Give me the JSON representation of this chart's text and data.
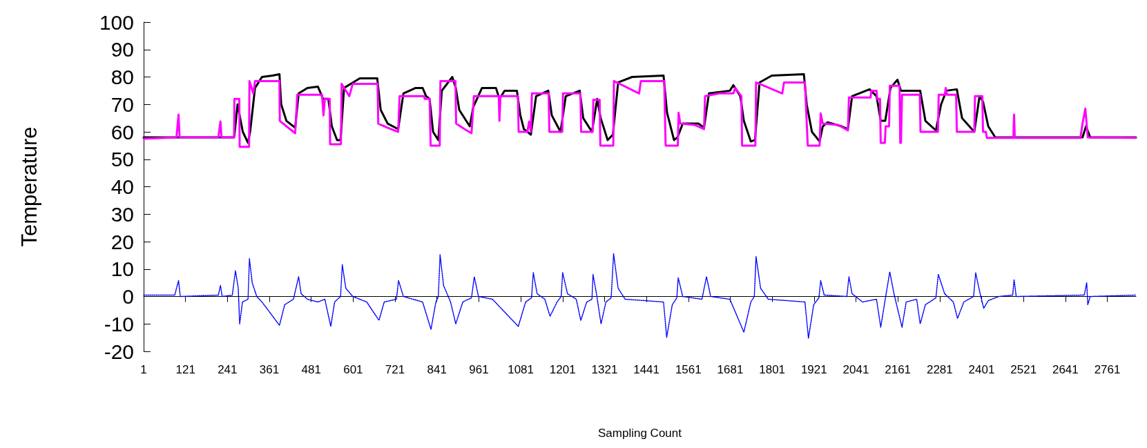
{
  "chart_data": {
    "type": "line",
    "xlabel": "Sampling Count",
    "ylabel": "Temperature",
    "xlim": [
      1,
      2843
    ],
    "xticks": [
      1,
      121,
      241,
      361,
      481,
      601,
      721,
      841,
      961,
      1081,
      1201,
      1321,
      1441,
      1561,
      1681,
      1801,
      1921,
      2041,
      2161,
      2281,
      2401,
      2521,
      2641,
      2761
    ],
    "ylim": [
      -20,
      100
    ],
    "yticks": [
      -20,
      -10,
      0,
      10,
      20,
      30,
      40,
      50,
      60,
      70,
      80,
      90,
      100
    ],
    "series": [
      {
        "color": "#000000",
        "line_style": "solid",
        "x": [
          1,
          260,
          262,
          270,
          285,
          300,
          306,
          320,
          340,
          370,
          390,
          395,
          410,
          435,
          445,
          470,
          500,
          515,
          530,
          540,
          555,
          565,
          575,
          620,
          670,
          680,
          700,
          730,
          745,
          780,
          800,
          810,
          820,
          830,
          845,
          855,
          885,
          895,
          905,
          935,
          945,
          970,
          1010,
          1020,
          1035,
          1070,
          1080,
          1090,
          1110,
          1125,
          1160,
          1170,
          1195,
          1210,
          1250,
          1260,
          1285,
          1300,
          1310,
          1330,
          1345,
          1360,
          1400,
          1490,
          1500,
          1520,
          1530,
          1545,
          1590,
          1606,
          1620,
          1680,
          1690,
          1710,
          1720,
          1740,
          1752,
          1765,
          1800,
          1892,
          1900,
          1915,
          1937,
          1946,
          1960,
          2000,
          2018,
          2030,
          2080,
          2100,
          2112,
          2125,
          2140,
          2160,
          2170,
          2180,
          2225,
          2240,
          2270,
          2285,
          2300,
          2330,
          2345,
          2380,
          2395,
          2405,
          2420,
          2440,
          2690,
          2700,
          2712,
          2843
        ],
        "values": [
          58,
          58,
          60,
          70,
          60,
          56,
          60,
          76,
          80,
          80.5,
          81,
          70,
          64,
          61.5,
          74,
          76,
          76.5,
          72,
          72,
          62,
          57,
          57,
          76,
          79.5,
          79.5,
          68,
          63,
          61,
          74,
          76,
          76,
          73,
          72,
          60,
          57,
          75,
          80,
          76,
          68,
          62,
          69,
          76,
          76,
          72,
          75,
          75,
          66,
          61,
          59,
          73,
          75,
          66,
          60,
          73,
          75,
          65,
          60,
          72,
          65,
          57,
          59,
          78,
          80,
          80.5,
          67,
          57,
          58,
          63,
          63,
          61.5,
          74,
          75,
          77,
          73,
          64,
          56.5,
          57,
          78,
          80.5,
          81,
          70,
          60,
          56.5,
          62,
          63.5,
          62,
          61,
          73,
          75.5,
          73,
          64,
          64,
          76,
          79,
          75,
          75,
          75,
          64,
          60.5,
          70,
          75,
          75.5,
          65,
          60,
          73,
          71,
          62,
          58,
          58,
          62,
          58,
          58
        ]
      },
      {
        "color": "#ff00ff",
        "line_style": "solid",
        "x": [
          1,
          95,
          101,
          104,
          215,
          221,
          224,
          260,
          261,
          275,
          276,
          303,
          304,
          315,
          320,
          390,
          391,
          420,
          435,
          441,
          512,
          516,
          520,
          534,
          535,
          566,
          568,
          590,
          600,
          671,
          673,
          700,
          730,
          734,
          804,
          806,
          820,
          823,
          849,
          851,
          894,
          896,
          920,
          940,
          947,
          1018,
          1020,
          1023,
          1073,
          1075,
          1100,
          1105,
          1110,
          1113,
          1161,
          1163,
          1200,
          1202,
          1252,
          1254,
          1287,
          1289,
          1307,
          1309,
          1346,
          1348,
          1420,
          1425,
          1492,
          1496,
          1531,
          1533,
          1538,
          1580,
          1606,
          1609,
          1650,
          1690,
          1695,
          1713,
          1715,
          1753,
          1755,
          1830,
          1835,
          1895,
          1903,
          1937,
          1940,
          1946,
          1990,
          2018,
          2021,
          2083,
          2085,
          2100,
          2102,
          2110,
          2112,
          2124,
          2126,
          2136,
          2138,
          2166,
          2168,
          2170,
          2173,
          2224,
          2226,
          2276,
          2278,
          2296,
          2298,
          2302,
          2328,
          2330,
          2380,
          2382,
          2403,
          2405,
          2413,
          2416,
          2492,
          2494,
          2496,
          2684,
          2690,
          2698,
          2705,
          2843
        ],
        "values": [
          57.5,
          58,
          66.3,
          58,
          58,
          63.8,
          58,
          58,
          72,
          72,
          54.5,
          54.5,
          78.5,
          74,
          78.5,
          78.5,
          64,
          61,
          59.5,
          73.5,
          73.5,
          66,
          72,
          72,
          55.5,
          55.5,
          77.5,
          73,
          77.5,
          77.5,
          63,
          61.5,
          60,
          73,
          73,
          72,
          72,
          55,
          55,
          78.5,
          78.5,
          63,
          61,
          59.5,
          73,
          73,
          64,
          73,
          73,
          60,
          60,
          63.8,
          60,
          74,
          74,
          60,
          60,
          74,
          74,
          60,
          60,
          71.7,
          71.7,
          55,
          55,
          78.5,
          74,
          78.5,
          78.5,
          55,
          55,
          67,
          63,
          62.5,
          61,
          73,
          74,
          74,
          76,
          73,
          55,
          55,
          78,
          74,
          78,
          78,
          55,
          55,
          66.7,
          63,
          62.5,
          60.5,
          72.5,
          72.5,
          75,
          75,
          72,
          72,
          56,
          56,
          62,
          62,
          76.8,
          76.8,
          56,
          56,
          73.5,
          73.5,
          60,
          60,
          73.5,
          73.5,
          76,
          73.5,
          73.5,
          60,
          60,
          73,
          73,
          60,
          60,
          57.8,
          57.8,
          66.3,
          57.8,
          57.8,
          63,
          68.5,
          58,
          57.8
        ]
      },
      {
        "color": "#0000ff",
        "line_style": "dotted",
        "x": [
          1,
          90,
          101,
          106,
          215,
          221,
          226,
          255,
          264,
          272,
          276,
          284,
          300,
          304,
          312,
          325,
          340,
          390,
          405,
          430,
          445,
          452,
          470,
          500,
          520,
          537,
          548,
          565,
          570,
          580,
          600,
          640,
          675,
          690,
          725,
          731,
          745,
          800,
          824,
          838,
          845,
          850,
          860,
          880,
          895,
          915,
          940,
          948,
          960,
          1000,
          1074,
          1095,
          1112,
          1117,
          1128,
          1150,
          1165,
          1185,
          1197,
          1201,
          1215,
          1240,
          1253,
          1270,
          1285,
          1288,
          1298,
          1311,
          1325,
          1340,
          1347,
          1360,
          1380,
          1490,
          1499,
          1515,
          1528,
          1532,
          1545,
          1600,
          1613,
          1625,
          1680,
          1720,
          1740,
          1750,
          1755,
          1768,
          1790,
          1895,
          1905,
          1920,
          1935,
          1940,
          1950,
          2015,
          2021,
          2030,
          2060,
          2100,
          2112,
          2125,
          2138,
          2150,
          2173,
          2185,
          2215,
          2225,
          2240,
          2270,
          2277,
          2295,
          2320,
          2332,
          2350,
          2378,
          2384,
          2395,
          2407,
          2420,
          2450,
          2490,
          2494,
          2500,
          2695,
          2702,
          2705,
          2712,
          2843
        ],
        "values": [
          0.5,
          0.5,
          5.8,
          0,
          0.5,
          4,
          0,
          0.5,
          9.4,
          3,
          -10,
          -2,
          -1,
          13.8,
          5,
          0,
          -2,
          -10.5,
          -3,
          -1,
          7.2,
          1,
          -1,
          -2,
          -1,
          -10.9,
          -2,
          0,
          11.6,
          3,
          0,
          -2,
          -8.7,
          -2,
          -1,
          5.8,
          0,
          -2,
          -12,
          -2,
          0,
          15.2,
          4,
          -2,
          -10,
          -2,
          -0.5,
          7.2,
          0,
          -1,
          -10.9,
          -2,
          -0.5,
          8.7,
          1,
          -1,
          -7.2,
          -2,
          0,
          8.7,
          1,
          -1,
          -8.7,
          -2,
          -1,
          8,
          1,
          -10,
          -2,
          -0.5,
          15.6,
          3,
          -1,
          -2,
          -14.9,
          -3,
          -0.5,
          6.9,
          0,
          -1,
          7.2,
          0,
          -1,
          -13,
          -2,
          0,
          14.5,
          3,
          -1,
          -2,
          -15.2,
          -3,
          -0.5,
          5.8,
          0.5,
          0,
          7.2,
          1,
          -2,
          -1,
          -11.2,
          -1,
          9,
          1,
          -11.2,
          -2,
          -1,
          -10,
          -3,
          -0.5,
          8.1,
          1,
          -2,
          -8,
          -2,
          0,
          8.6,
          2,
          -4.3,
          -1.5,
          0,
          0.5,
          6.2,
          0,
          0.5,
          5,
          -3,
          0,
          0.5
        ]
      }
    ]
  }
}
